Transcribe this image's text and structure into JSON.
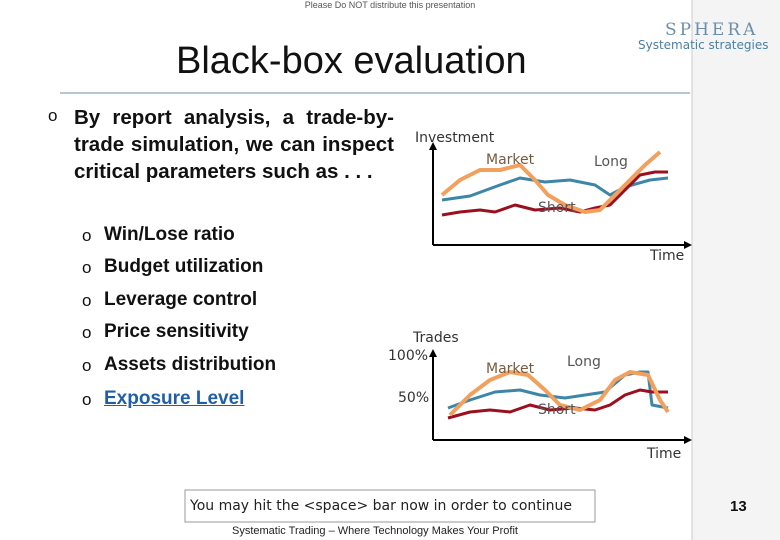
{
  "header": {
    "notice": "Please Do NOT distribute this presentation",
    "logo": "SPHERA",
    "logo_tagline": "Systematic strategies",
    "title": "Black-box evaluation"
  },
  "body": {
    "intro": "By report analysis, a trade-by-trade simulation, we can inspect critical parameters such as . . .",
    "bullets": [
      "Win/Lose ratio",
      "Budget utilization",
      "Leverage control",
      "Price sensitivity",
      "Assets distribution",
      "Exposure Level"
    ]
  },
  "figure_top": {
    "y_label": "Investment",
    "market": "Market",
    "long": "Long",
    "short": "Short",
    "x_label": "Time"
  },
  "figure_bottom": {
    "y_label": "Trades",
    "tick_high": "100%",
    "tick_low": "50%",
    "market": "Market",
    "long": "Long",
    "short": "Short",
    "x_label": "Time"
  },
  "footer": {
    "prompt": "You may hit the <space> bar now in order to continue",
    "tagline": "Systematic Trading – Where Technology Makes Your Profit",
    "page": "13"
  }
}
